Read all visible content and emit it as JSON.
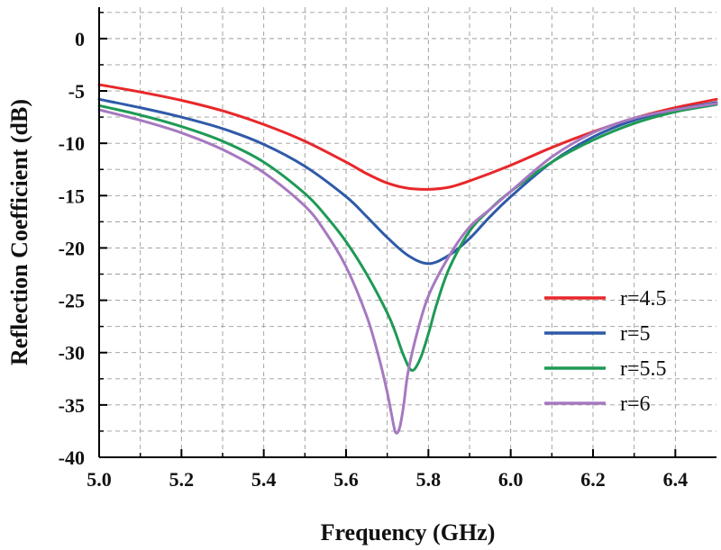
{
  "chart_data": {
    "type": "line",
    "title": "",
    "xlabel": "Frequency (GHz)",
    "ylabel": "Reflection Coefficient (dB)",
    "xlim": [
      5.0,
      6.5
    ],
    "ylim": [
      -40,
      3
    ],
    "grid": true,
    "legend_position": "lower-right",
    "x_ticks": [
      {
        "value": 5.0,
        "label": "5.0"
      },
      {
        "value": 5.2,
        "label": "5.2"
      },
      {
        "value": 5.4,
        "label": "5.4"
      },
      {
        "value": 5.6,
        "label": "5.6"
      },
      {
        "value": 5.8,
        "label": "5.8"
      },
      {
        "value": 6.0,
        "label": "6.0"
      },
      {
        "value": 6.2,
        "label": "6.2"
      },
      {
        "value": 6.4,
        "label": "6.4"
      }
    ],
    "y_ticks": [
      {
        "value": 0,
        "label": "0"
      },
      {
        "value": -5,
        "label": "-5"
      },
      {
        "value": -10,
        "label": "-10"
      },
      {
        "value": -15,
        "label": "-15"
      },
      {
        "value": -20,
        "label": "-20"
      },
      {
        "value": -25,
        "label": "-25"
      },
      {
        "value": -30,
        "label": "-30"
      },
      {
        "value": -35,
        "label": "-35"
      },
      {
        "value": -40,
        "label": "-40"
      }
    ],
    "series": [
      {
        "name": "r=4.5",
        "color": "#e8272a",
        "x": [
          5.0,
          5.1,
          5.2,
          5.3,
          5.4,
          5.5,
          5.6,
          5.65,
          5.7,
          5.75,
          5.8,
          5.85,
          5.9,
          6.0,
          6.1,
          6.2,
          6.3,
          6.4,
          6.5
        ],
        "y": [
          -4.4,
          -5.1,
          -5.9,
          -6.9,
          -8.2,
          -9.8,
          -11.8,
          -12.9,
          -13.8,
          -14.3,
          -14.4,
          -14.2,
          -13.6,
          -12.1,
          -10.4,
          -8.9,
          -7.6,
          -6.6,
          -5.8
        ]
      },
      {
        "name": "r=5",
        "color": "#2f5aa8",
        "x": [
          5.0,
          5.1,
          5.2,
          5.3,
          5.4,
          5.5,
          5.6,
          5.65,
          5.7,
          5.75,
          5.8,
          5.85,
          5.9,
          5.95,
          6.0,
          6.1,
          6.2,
          6.3,
          6.4,
          6.5
        ],
        "y": [
          -5.8,
          -6.6,
          -7.5,
          -8.6,
          -10.1,
          -12.2,
          -15.1,
          -17.0,
          -19.0,
          -20.7,
          -21.5,
          -20.7,
          -19.1,
          -17.0,
          -15.1,
          -11.8,
          -9.4,
          -7.8,
          -6.8,
          -6.1
        ]
      },
      {
        "name": "r=5.5",
        "color": "#1e9a55",
        "x": [
          5.0,
          5.1,
          5.2,
          5.3,
          5.4,
          5.5,
          5.55,
          5.6,
          5.65,
          5.7,
          5.72,
          5.74,
          5.76,
          5.78,
          5.8,
          5.82,
          5.85,
          5.9,
          5.95,
          6.0,
          6.1,
          6.2,
          6.3,
          6.4,
          6.5
        ],
        "y": [
          -6.4,
          -7.3,
          -8.4,
          -9.8,
          -11.8,
          -14.8,
          -16.9,
          -19.4,
          -22.5,
          -26.2,
          -28.1,
          -30.3,
          -31.7,
          -30.6,
          -28.2,
          -25.4,
          -22.0,
          -18.4,
          -16.3,
          -14.6,
          -11.8,
          -9.7,
          -8.1,
          -7.0,
          -6.3
        ]
      },
      {
        "name": "r=6",
        "color": "#a679c0",
        "x": [
          5.0,
          5.1,
          5.2,
          5.3,
          5.4,
          5.5,
          5.55,
          5.6,
          5.65,
          5.68,
          5.7,
          5.71,
          5.72,
          5.73,
          5.74,
          5.75,
          5.77,
          5.8,
          5.85,
          5.9,
          5.95,
          6.0,
          6.1,
          6.2,
          6.3,
          6.4,
          6.5
        ],
        "y": [
          -6.8,
          -7.8,
          -9.0,
          -10.6,
          -12.8,
          -16.0,
          -18.5,
          -21.8,
          -26.5,
          -30.5,
          -33.8,
          -35.8,
          -37.6,
          -37.2,
          -35.0,
          -32.0,
          -28.5,
          -24.6,
          -20.8,
          -18.0,
          -16.3,
          -14.6,
          -11.3,
          -9.0,
          -7.6,
          -6.8,
          -6.2
        ]
      }
    ]
  }
}
